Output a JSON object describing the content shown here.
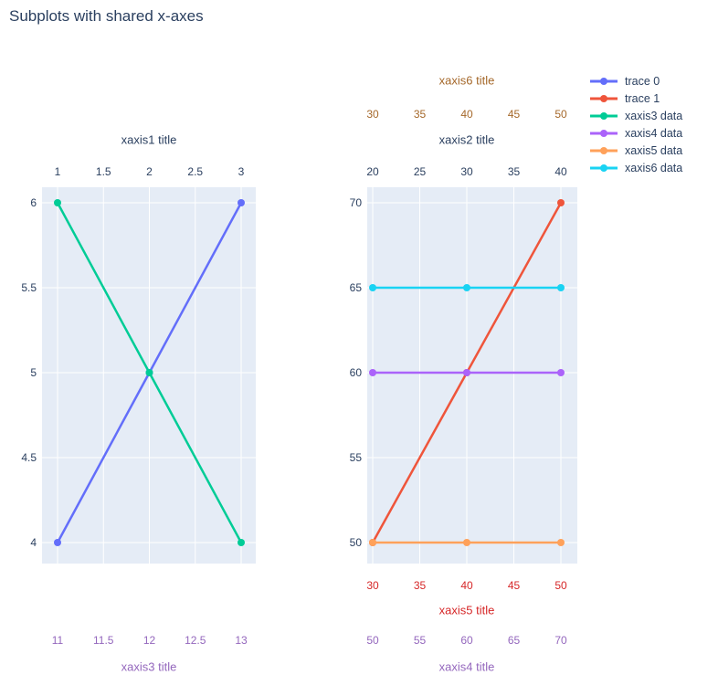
{
  "title": "Subplots with shared x-axes",
  "colors": {
    "text": "#2a3f5f",
    "plot_background": "#e5ecf6",
    "gridline": "#ffffff"
  },
  "legend": {
    "items": [
      {
        "label": "trace 0",
        "color": "#636efa"
      },
      {
        "label": "trace 1",
        "color": "#ef553b"
      },
      {
        "label": "xaxis3 data",
        "color": "#00cc96"
      },
      {
        "label": "xaxis4 data",
        "color": "#ab63fa"
      },
      {
        "label": "xaxis5 data",
        "color": "#ffa15a"
      },
      {
        "label": "xaxis6 data",
        "color": "#19d3f3"
      }
    ]
  },
  "chart_data": [
    {
      "type": "line",
      "subplot": "left",
      "x_axes": [
        {
          "id": "xaxis1",
          "title": "xaxis1 title",
          "side": "top",
          "ticks": [
            1,
            1.5,
            2,
            2.5,
            3
          ],
          "color": "#2a3f5f"
        },
        {
          "id": "xaxis3",
          "title": "xaxis3 title",
          "side": "bottom",
          "ticks": [
            11,
            11.5,
            12,
            12.5,
            13
          ],
          "color": "#9467bd"
        }
      ],
      "y_axis": {
        "ticks": [
          4,
          4.5,
          5,
          5.5,
          6
        ],
        "color": "#2a3f5f"
      },
      "series": [
        {
          "name": "trace 0",
          "color": "#636efa",
          "xaxis": "xaxis1",
          "x": [
            1,
            2,
            3
          ],
          "y": [
            4,
            5,
            6
          ]
        },
        {
          "name": "xaxis3 data",
          "color": "#00cc96",
          "xaxis": "xaxis3",
          "x": [
            11,
            12,
            13
          ],
          "y": [
            6,
            5,
            4
          ]
        }
      ]
    },
    {
      "type": "line",
      "subplot": "right",
      "x_axes": [
        {
          "id": "xaxis6",
          "title": "xaxis6 title",
          "side": "top-outer",
          "ticks": [
            30,
            35,
            40,
            45,
            50
          ],
          "color": "#a5682a"
        },
        {
          "id": "xaxis2",
          "title": "xaxis2 title",
          "side": "top",
          "ticks": [
            20,
            25,
            30,
            35,
            40
          ],
          "color": "#2a3f5f"
        },
        {
          "id": "xaxis5",
          "title": "xaxis5 title",
          "side": "bottom",
          "ticks": [
            30,
            35,
            40,
            45,
            50
          ],
          "color": "#d62728"
        },
        {
          "id": "xaxis4",
          "title": "xaxis4 title",
          "side": "bottom-outer",
          "ticks": [
            50,
            55,
            60,
            65,
            70
          ],
          "color": "#9467bd"
        }
      ],
      "y_axis": {
        "ticks": [
          50,
          55,
          60,
          65,
          70
        ],
        "color": "#2a3f5f"
      },
      "series": [
        {
          "name": "trace 1",
          "color": "#ef553b",
          "xaxis": "xaxis2",
          "x": [
            20,
            30,
            40
          ],
          "y": [
            50,
            60,
            70
          ]
        },
        {
          "name": "xaxis4 data",
          "color": "#ab63fa",
          "xaxis": "xaxis4",
          "x": [
            50,
            60,
            70
          ],
          "y": [
            60,
            60,
            60
          ]
        },
        {
          "name": "xaxis5 data",
          "color": "#ffa15a",
          "xaxis": "xaxis5",
          "x": [
            30,
            40,
            50
          ],
          "y": [
            50,
            50,
            50
          ]
        },
        {
          "name": "xaxis6 data",
          "color": "#19d3f3",
          "xaxis": "xaxis6",
          "x": [
            30,
            40,
            50
          ],
          "y": [
            65,
            65,
            65
          ]
        }
      ]
    }
  ]
}
